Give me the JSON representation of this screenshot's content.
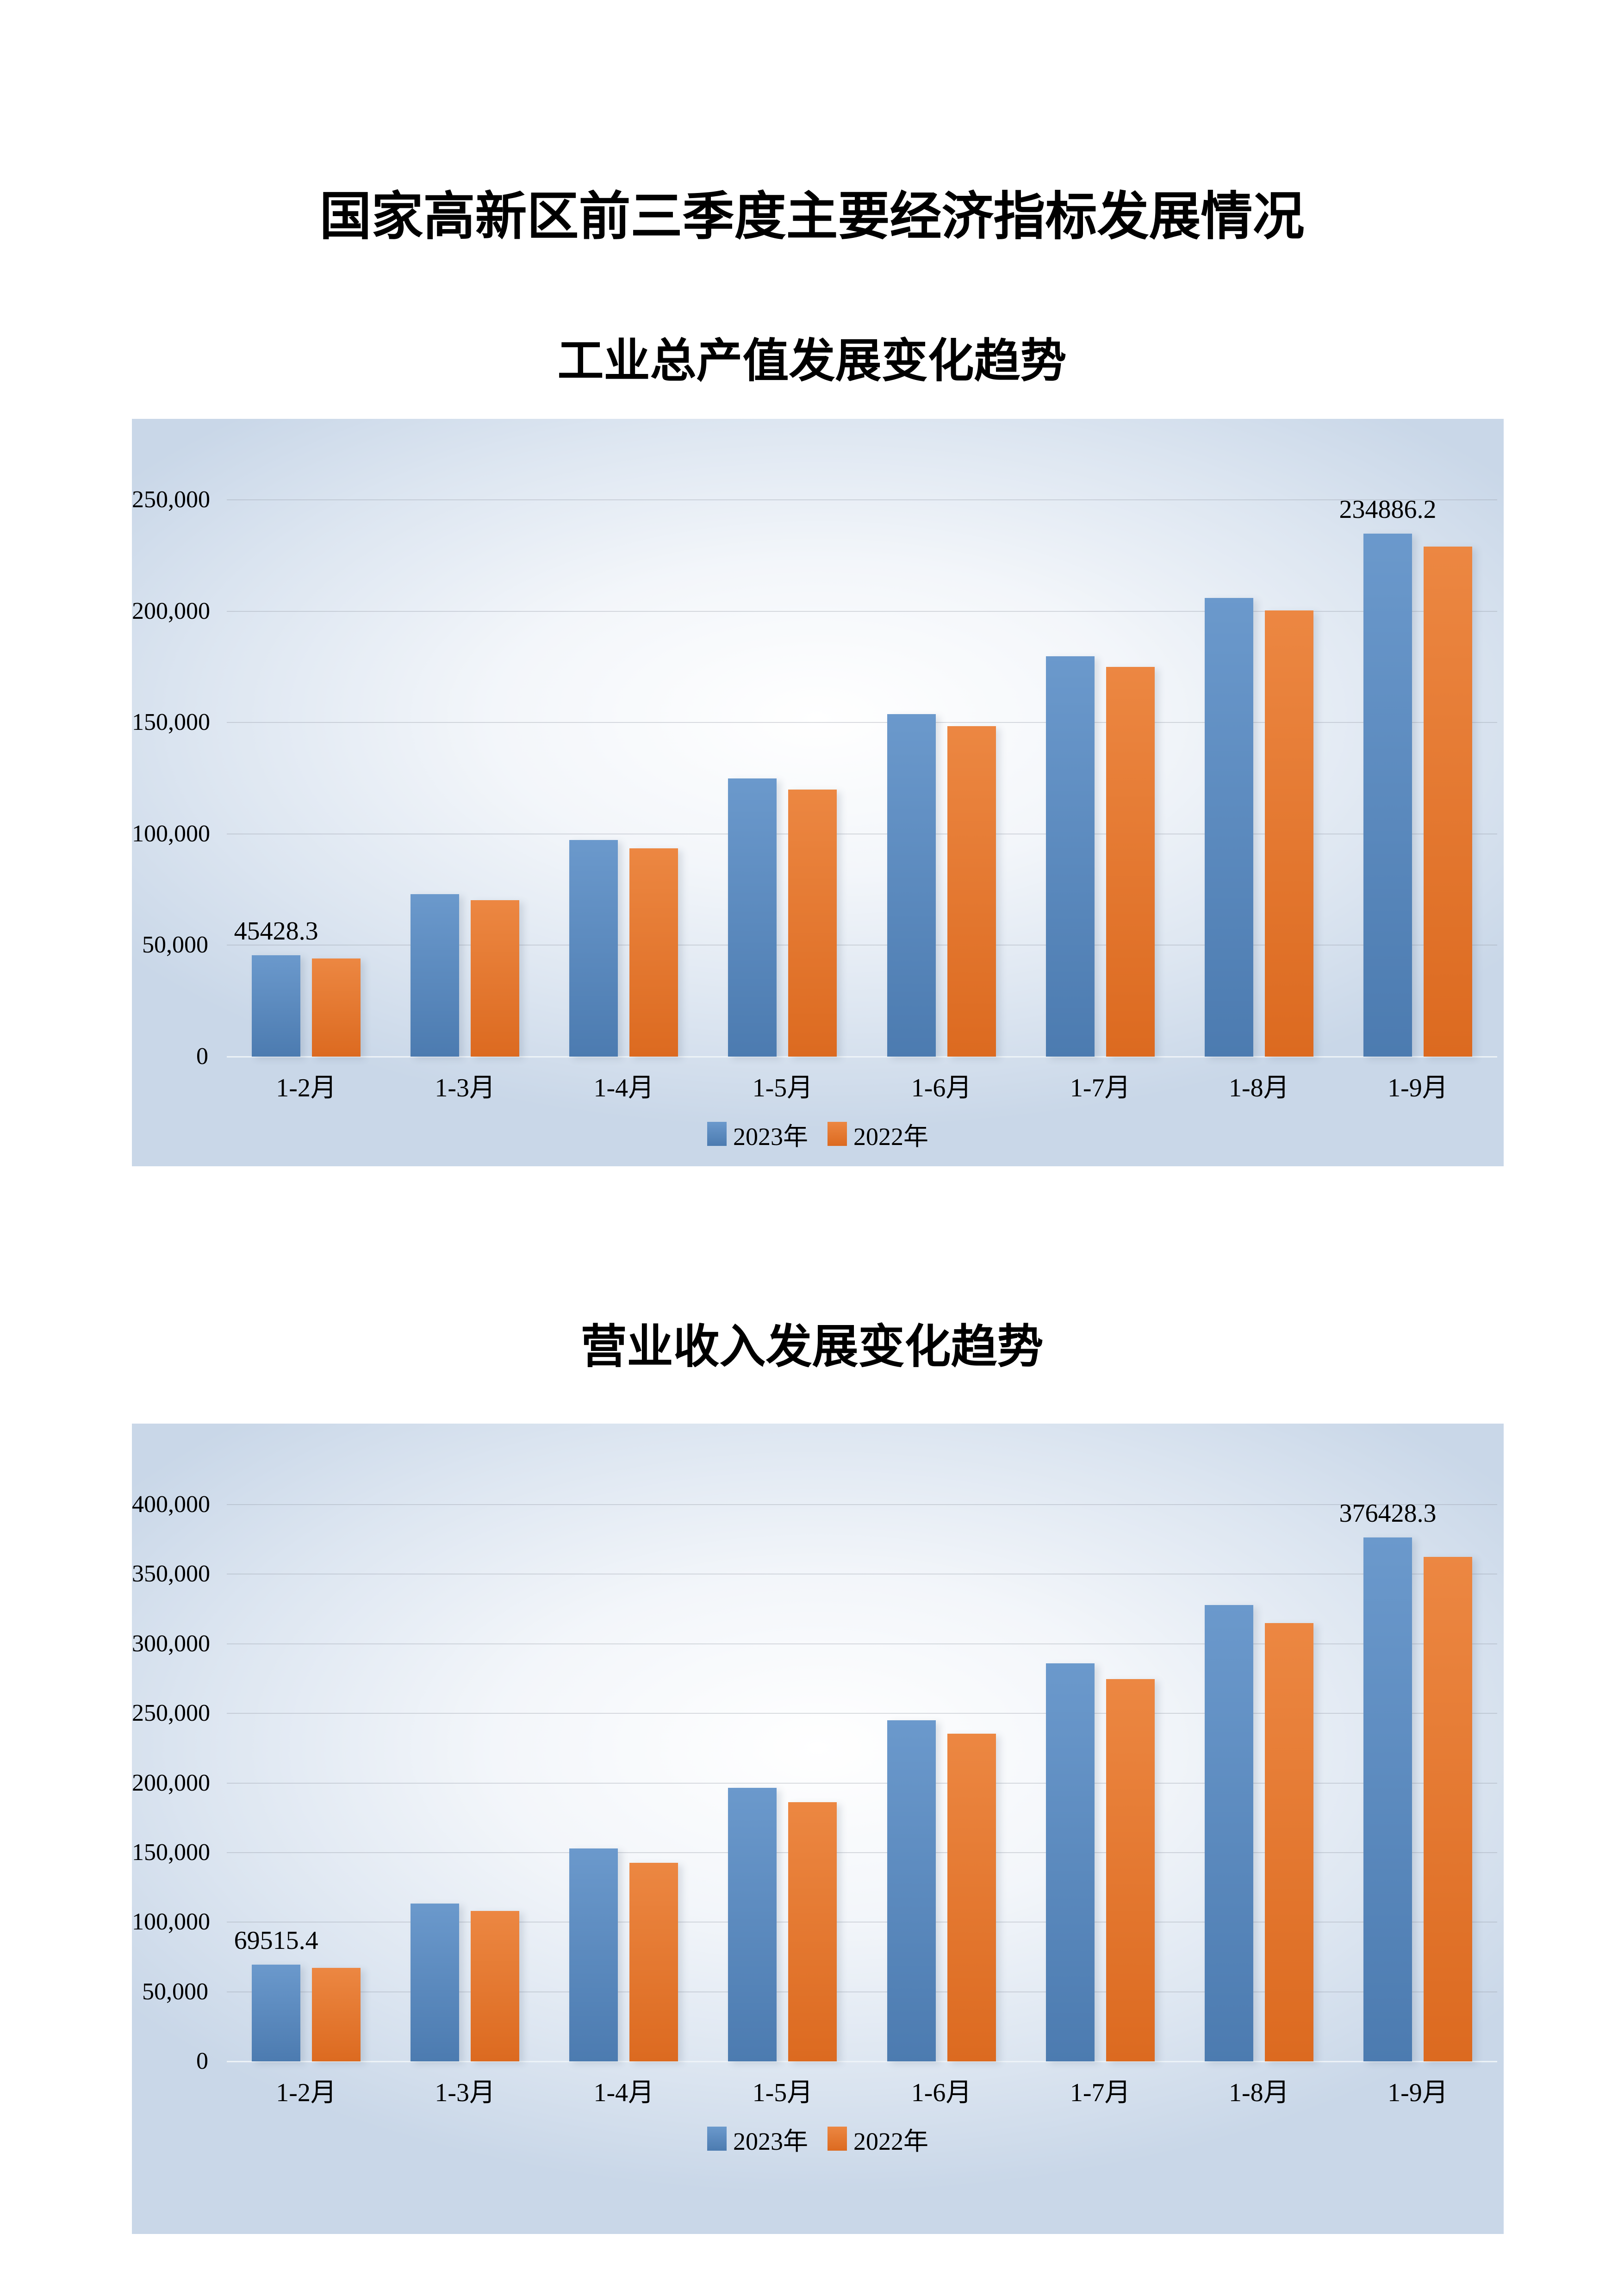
{
  "page": {
    "main_title": "国家高新区前三季度主要经济指标发展情况"
  },
  "chart_data": [
    {
      "type": "bar",
      "title": "工业总产值发展变化趋势",
      "categories": [
        "1-2月",
        "1-3月",
        "1-4月",
        "1-5月",
        "1-6月",
        "1-7月",
        "1-8月",
        "1-9月"
      ],
      "series": [
        {
          "name": "2023年",
          "color_top": "#6B99CC",
          "color_bottom": "#4C7BB0",
          "values": [
            45428.3,
            72900,
            97300,
            124800,
            153800,
            179700,
            205900,
            234886.2
          ]
        },
        {
          "name": "2022年",
          "color_top": "#EC8742",
          "color_bottom": "#DC6A20",
          "values": [
            44000,
            70300,
            93600,
            119900,
            148300,
            174900,
            200400,
            229100
          ]
        }
      ],
      "ylim": [
        0,
        250000
      ],
      "ytick_labels": [
        "0",
        "50,000",
        "100,000",
        "150,000",
        "200,000",
        "250,000"
      ],
      "grid": true,
      "legend_position": "bottom",
      "data_labels": [
        {
          "series": 0,
          "index": 0,
          "text": "45428.3"
        },
        {
          "series": 0,
          "index": 7,
          "text": "234886.2"
        }
      ]
    },
    {
      "type": "bar",
      "title": "营业收入发展变化趋势",
      "categories": [
        "1-2月",
        "1-3月",
        "1-4月",
        "1-5月",
        "1-6月",
        "1-7月",
        "1-8月",
        "1-9月"
      ],
      "series": [
        {
          "name": "2023年",
          "color_top": "#6B99CC",
          "color_bottom": "#4C7BB0",
          "values": [
            69515.4,
            113400,
            153100,
            196500,
            245200,
            286100,
            327800,
            376428.3
          ]
        },
        {
          "name": "2022年",
          "color_top": "#EC8742",
          "color_bottom": "#DC6A20",
          "values": [
            67000,
            108100,
            142700,
            186200,
            235400,
            274700,
            315000,
            362500
          ]
        }
      ],
      "ylim": [
        0,
        400000
      ],
      "ytick_labels": [
        "0",
        "50,000",
        "100,000",
        "150,000",
        "200,000",
        "250,000",
        "300,000",
        "350,000",
        "400,000"
      ],
      "grid": true,
      "legend_position": "bottom",
      "data_labels": [
        {
          "series": 0,
          "index": 0,
          "text": "69515.4"
        },
        {
          "series": 0,
          "index": 7,
          "text": "376428.3"
        }
      ]
    }
  ]
}
